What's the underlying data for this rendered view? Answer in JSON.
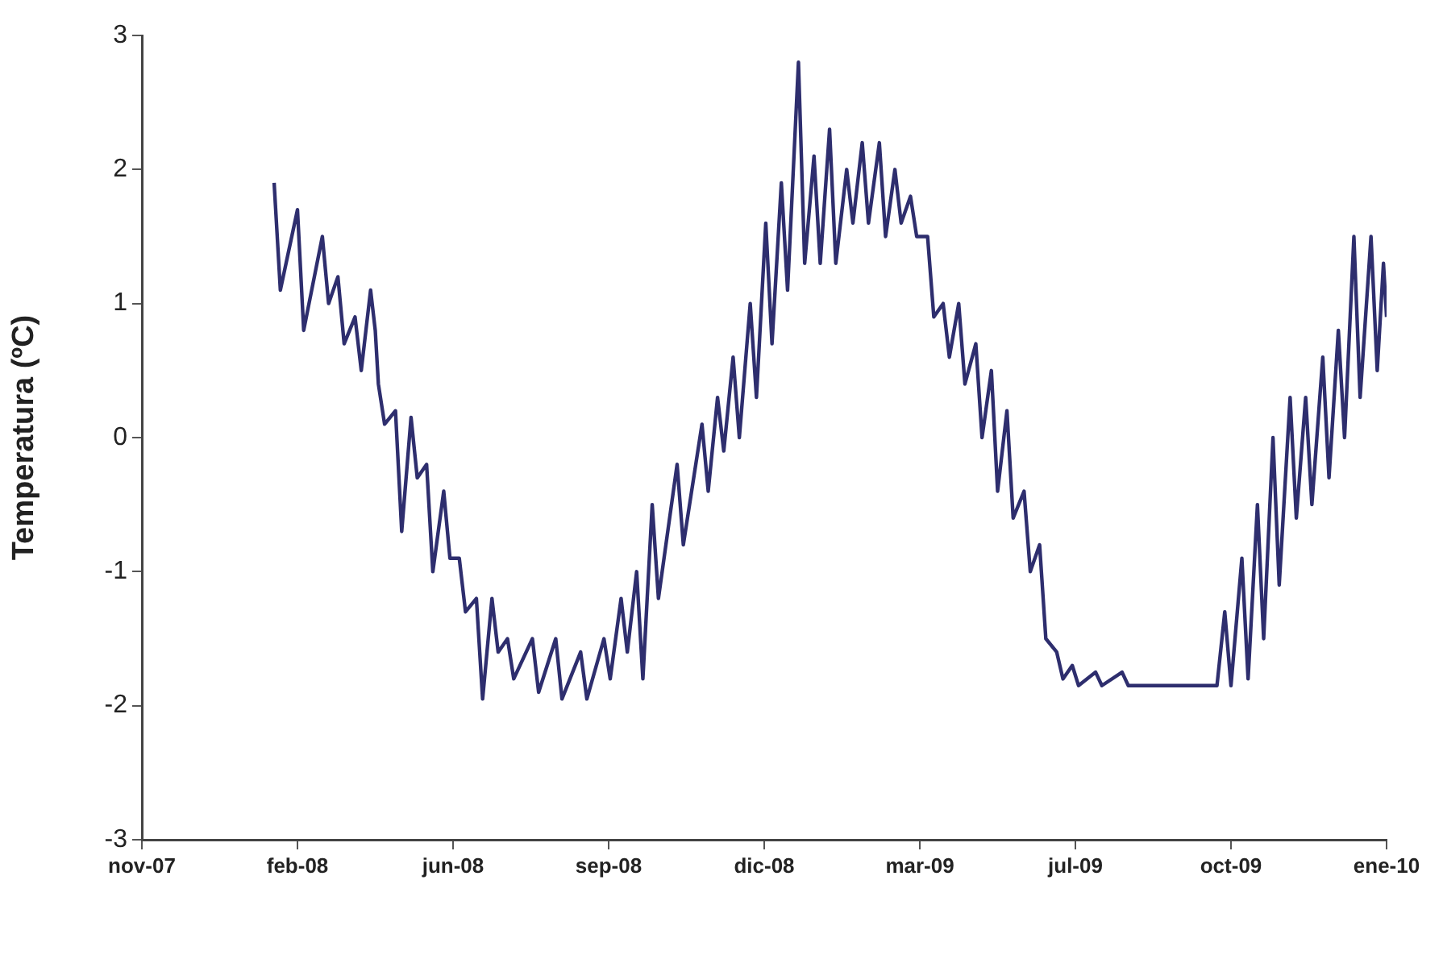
{
  "chart_data": {
    "type": "line",
    "ylabel": "Temperatura (ºC)",
    "xlim": [
      "2007-11-14",
      "2010-01-22"
    ],
    "xticks": [
      {
        "value": "2007-11-14",
        "label": "nov-07"
      },
      {
        "value": "2008-02-22",
        "label": "feb-08"
      },
      {
        "value": "2008-06-01",
        "label": "jun-08"
      },
      {
        "value": "2008-09-09",
        "label": "sep-08"
      },
      {
        "value": "2008-12-18",
        "label": "dic-08"
      },
      {
        "value": "2009-03-28",
        "label": "mar-09"
      },
      {
        "value": "2009-07-06",
        "label": "jul-09"
      },
      {
        "value": "2009-10-14",
        "label": "oct-09"
      },
      {
        "value": "2010-01-22",
        "label": "ene-10"
      }
    ],
    "ylim": [
      -3,
      3
    ],
    "yticks": [
      -3,
      -2,
      -1,
      0,
      1,
      2,
      3
    ],
    "grid": false,
    "legend": false,
    "marker": "none",
    "line_style": "solid",
    "x": [
      "2008-02-07",
      "2008-02-11",
      "2008-02-22",
      "2008-02-26",
      "2008-03-09",
      "2008-03-13",
      "2008-03-19",
      "2008-03-23",
      "2008-03-30",
      "2008-04-03",
      "2008-04-09",
      "2008-04-12",
      "2008-04-14",
      "2008-04-18",
      "2008-04-25",
      "2008-04-29",
      "2008-05-05",
      "2008-05-09",
      "2008-05-15",
      "2008-05-19",
      "2008-05-26",
      "2008-05-30",
      "2008-06-05",
      "2008-06-09",
      "2008-06-16",
      "2008-06-20",
      "2008-06-26",
      "2008-06-30",
      "2008-07-06",
      "2008-07-10",
      "2008-07-22",
      "2008-07-26",
      "2008-08-06",
      "2008-08-10",
      "2008-08-22",
      "2008-08-26",
      "2008-09-06",
      "2008-09-10",
      "2008-09-17",
      "2008-09-21",
      "2008-09-27",
      "2008-10-01",
      "2008-10-07",
      "2008-10-11",
      "2008-10-23",
      "2008-10-27",
      "2008-11-08",
      "2008-11-12",
      "2008-11-18",
      "2008-11-22",
      "2008-11-28",
      "2008-12-02",
      "2008-12-09",
      "2008-12-13",
      "2008-12-19",
      "2008-12-23",
      "2008-12-29",
      "2009-01-02",
      "2009-01-09",
      "2009-01-13",
      "2009-01-19",
      "2009-01-23",
      "2009-01-29",
      "2009-02-02",
      "2009-02-09",
      "2009-02-13",
      "2009-02-19",
      "2009-02-23",
      "2009-03-02",
      "2009-03-06",
      "2009-03-12",
      "2009-03-16",
      "2009-03-22",
      "2009-03-26",
      "2009-04-02",
      "2009-04-06",
      "2009-04-12",
      "2009-04-16",
      "2009-04-22",
      "2009-04-26",
      "2009-05-03",
      "2009-05-07",
      "2009-05-13",
      "2009-05-17",
      "2009-05-23",
      "2009-05-27",
      "2009-06-03",
      "2009-06-07",
      "2009-06-13",
      "2009-06-17",
      "2009-06-24",
      "2009-06-28",
      "2009-07-04",
      "2009-07-08",
      "2009-07-19",
      "2009-07-23",
      "2009-08-05",
      "2009-08-09",
      "2009-08-25",
      "2009-10-05",
      "2009-10-10",
      "2009-10-14",
      "2009-10-21",
      "2009-10-25",
      "2009-10-31",
      "2009-11-04",
      "2009-11-10",
      "2009-11-14",
      "2009-11-21",
      "2009-11-25",
      "2009-12-01",
      "2009-12-05",
      "2009-12-12",
      "2009-12-16",
      "2009-12-22",
      "2009-12-26",
      "2010-01-01",
      "2010-01-05",
      "2010-01-12",
      "2010-01-16",
      "2010-01-20",
      "2010-01-22"
    ],
    "series": [
      {
        "color": "#2e2e6e",
        "values": [
          1.9,
          1.1,
          1.7,
          0.8,
          1.5,
          1.0,
          1.2,
          0.7,
          0.9,
          0.5,
          1.1,
          0.8,
          0.4,
          0.1,
          0.2,
          -0.7,
          0.15,
          -0.3,
          -0.2,
          -1.0,
          -0.4,
          -0.9,
          -0.9,
          -1.3,
          -1.2,
          -1.95,
          -1.2,
          -1.6,
          -1.5,
          -1.8,
          -1.5,
          -1.9,
          -1.5,
          -1.95,
          -1.6,
          -1.95,
          -1.5,
          -1.8,
          -1.2,
          -1.6,
          -1.0,
          -1.8,
          -0.5,
          -1.2,
          -0.2,
          -0.8,
          0.1,
          -0.4,
          0.3,
          -0.1,
          0.6,
          0.0,
          1.0,
          0.3,
          1.6,
          0.7,
          1.9,
          1.1,
          2.8,
          1.3,
          2.1,
          1.3,
          2.3,
          1.3,
          2.0,
          1.6,
          2.2,
          1.6,
          2.2,
          1.5,
          2.0,
          1.6,
          1.8,
          1.5,
          1.5,
          0.9,
          1.0,
          0.6,
          1.0,
          0.4,
          0.7,
          0.0,
          0.5,
          -0.4,
          0.2,
          -0.6,
          -0.4,
          -1.0,
          -0.8,
          -1.5,
          -1.6,
          -1.8,
          -1.7,
          -1.85,
          -1.75,
          -1.85,
          -1.75,
          -1.85,
          -1.85,
          -1.85,
          -1.3,
          -1.85,
          -0.9,
          -1.8,
          -0.5,
          -1.5,
          0.0,
          -1.1,
          0.3,
          -0.6,
          0.3,
          -0.5,
          0.6,
          -0.3,
          0.8,
          0.0,
          1.5,
          0.3,
          1.5,
          0.5,
          1.3,
          0.9
        ]
      }
    ]
  }
}
